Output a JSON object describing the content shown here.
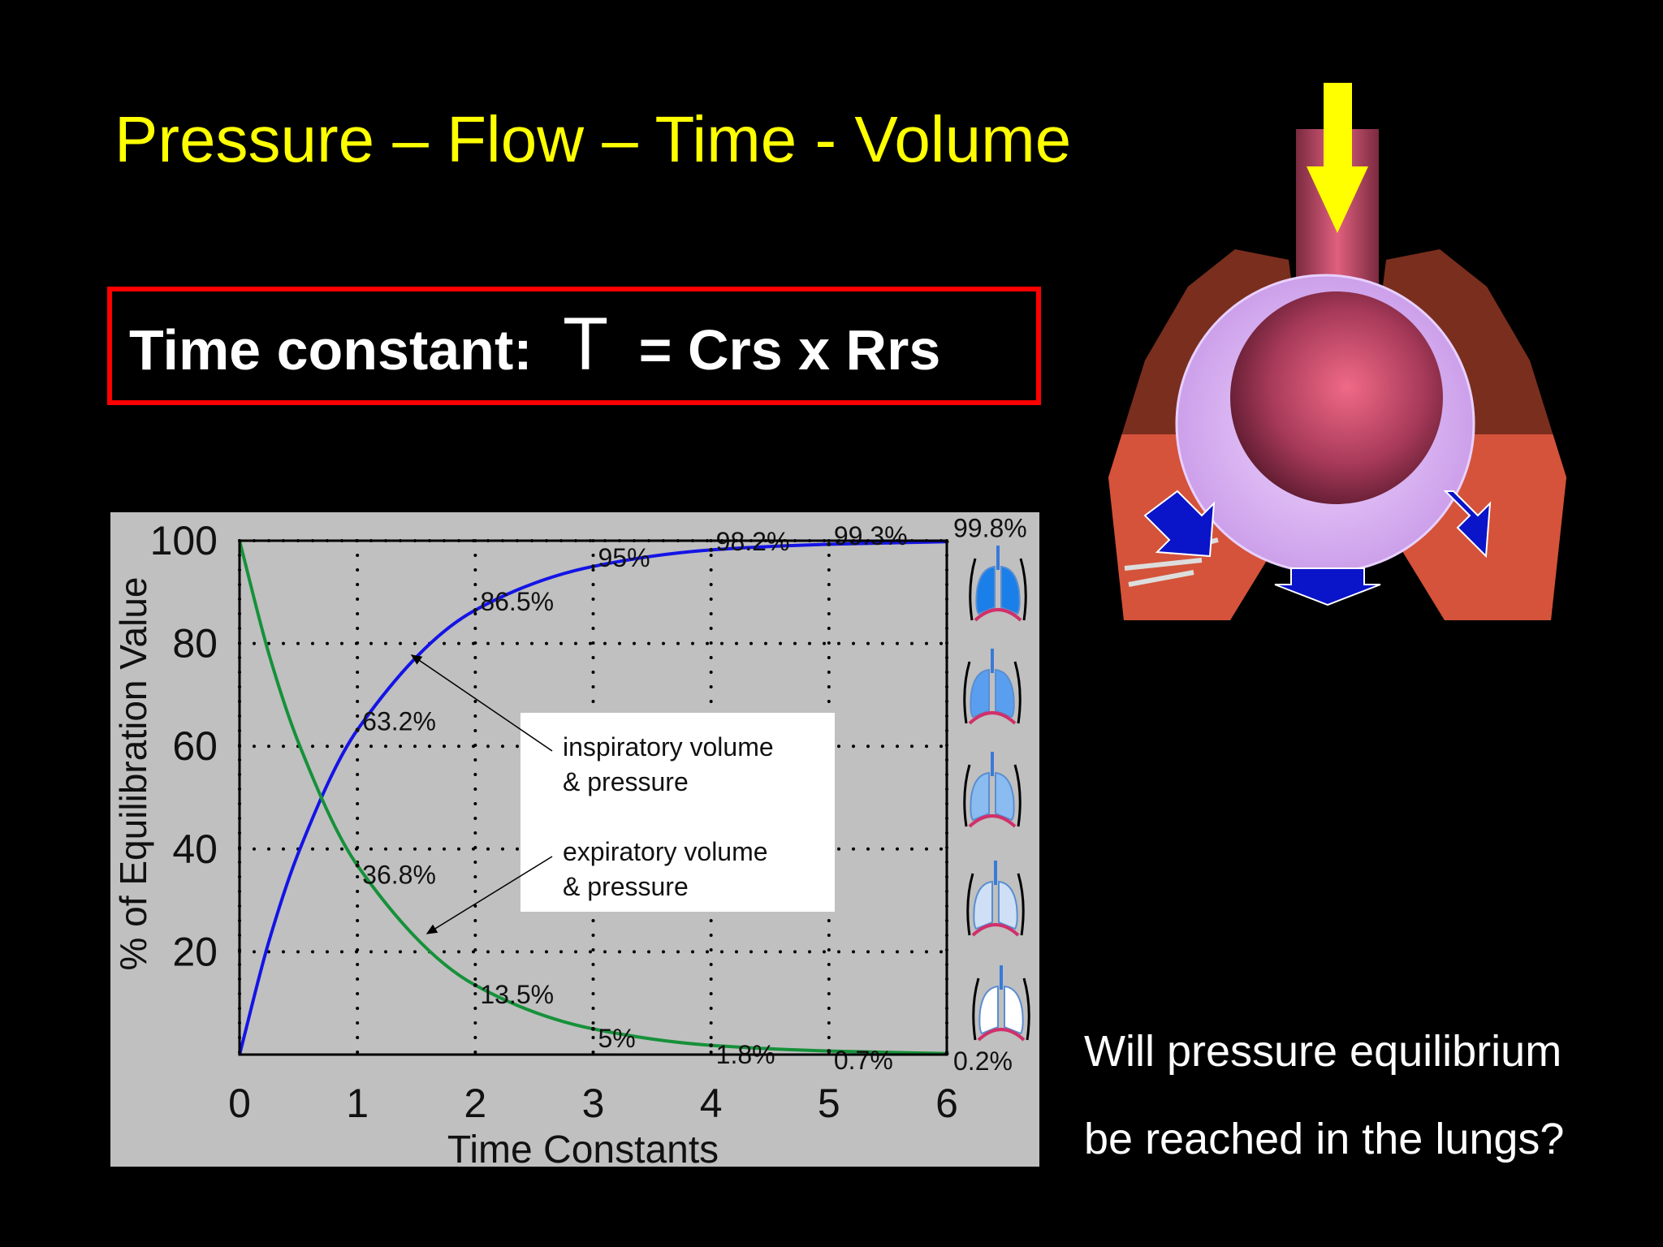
{
  "slide": {
    "title": "Pressure – Flow – Time - Volume",
    "formula": {
      "label": "Time constant:",
      "symbol": "T",
      "expression": "= Crs x Rrs"
    },
    "question": [
      "Will pressure equilibrium",
      "be reached in the lungs?"
    ]
  },
  "chart_data": {
    "type": "line",
    "xlabel": "Time Constants",
    "ylabel": "% of Equilibration Value",
    "x": [
      0,
      0.25,
      0.5,
      1,
      2,
      3,
      4,
      5,
      6
    ],
    "series": [
      {
        "name": "inspiratory volume & pressure",
        "color": "#1414e6",
        "values": [
          0,
          22.1,
          39.3,
          63.2,
          86.5,
          95,
          98.2,
          99.3,
          99.8
        ],
        "value_labels": [
          null,
          null,
          null,
          "63.2%",
          "86.5%",
          "95%",
          "98.2%",
          "99.3%",
          "99.8%"
        ]
      },
      {
        "name": "expiratory volume & pressure",
        "color": "#16913a",
        "values": [
          100,
          77.9,
          60.7,
          36.8,
          13.5,
          5,
          1.8,
          0.7,
          0.2
        ],
        "value_labels": [
          null,
          null,
          null,
          "36.8%",
          "13.5%",
          "5%",
          "1.8%",
          "0.7%",
          "0.2%"
        ]
      }
    ],
    "xlim": [
      0,
      6
    ],
    "ylim": [
      0,
      100
    ],
    "xticks": [
      0,
      1,
      2,
      3,
      4,
      5,
      6
    ],
    "yticks": [
      20,
      40,
      60,
      80,
      100
    ],
    "grid": true
  }
}
